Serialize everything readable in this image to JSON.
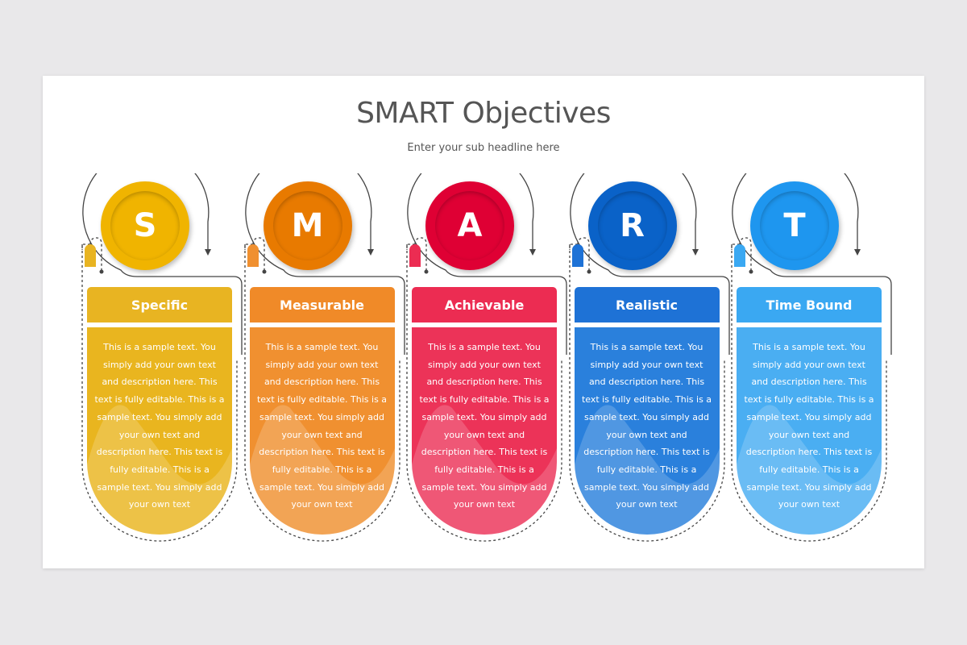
{
  "title": "SMART Objectives",
  "subtitle": "Enter your sub headline here",
  "items": [
    {
      "letter": "S",
      "label": "Specific",
      "circle": "#f0b400",
      "head": "#e8b422",
      "body": "#e9b51f",
      "tab": "#e8b422"
    },
    {
      "letter": "M",
      "label": "Measurable",
      "circle": "#e87a00",
      "head": "#f08a28",
      "body": "#f09030",
      "tab": "#f09030"
    },
    {
      "letter": "A",
      "label": "Achievable",
      "circle": "#df0034",
      "head": "#ec2c52",
      "body": "#ec3358",
      "tab": "#ec2c52"
    },
    {
      "letter": "R",
      "label": "Realistic",
      "circle": "#0a62c8",
      "head": "#1e72d6",
      "body": "#2a80dc",
      "tab": "#1e72d6"
    },
    {
      "letter": "T",
      "label": "Time Bound",
      "circle": "#1e96ef",
      "head": "#3aa8f2",
      "body": "#4aaef2",
      "tab": "#3aa8f2"
    }
  ],
  "body_text": "This is a sample text. You simply add your own text and description here. This text is fully editable. This is a sample text. You simply add your own text and description here. This text is fully editable.  This is a sample text. You simply add your own text"
}
